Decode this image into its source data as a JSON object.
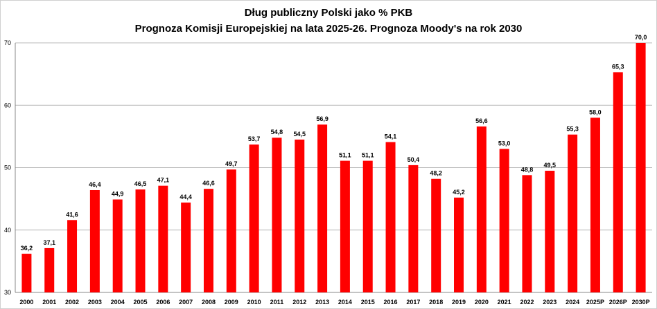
{
  "chart_data": {
    "type": "bar",
    "title": "Dług publiczny Polski jako % PKB",
    "subtitle": "Prognoza Komisji Europejskiej na lata 2025-26. Prognoza Moody's na rok 2030",
    "xlabel": "",
    "ylabel": "",
    "ylim": [
      30,
      70
    ],
    "yticks": [
      "30",
      "40",
      "50",
      "60",
      "70"
    ],
    "grid": true,
    "bar_color": "#ff0000",
    "categories": [
      "2000",
      "2001",
      "2002",
      "2003",
      "2004",
      "2005",
      "2006",
      "2007",
      "2008",
      "2009",
      "2010",
      "2011",
      "2012",
      "2013",
      "2014",
      "2015",
      "2016",
      "2017",
      "2018",
      "2019",
      "2020",
      "2021",
      "2022",
      "2023",
      "2024",
      "2025P",
      "2026P",
      "2030P"
    ],
    "values": [
      36.2,
      37.1,
      41.6,
      46.4,
      44.9,
      46.5,
      47.1,
      44.4,
      46.6,
      49.7,
      53.7,
      54.8,
      54.5,
      56.9,
      51.1,
      51.1,
      54.1,
      50.4,
      48.2,
      45.2,
      56.6,
      53.0,
      48.8,
      49.5,
      55.3,
      58.0,
      65.3,
      70.0
    ],
    "value_labels": [
      "36,2",
      "37,1",
      "41,6",
      "46,4",
      "44,9",
      "46,5",
      "47,1",
      "44,4",
      "46,6",
      "49,7",
      "53,7",
      "54,8",
      "54,5",
      "56,9",
      "51,1",
      "51,1",
      "54,1",
      "50,4",
      "48,2",
      "45,2",
      "56,6",
      "53,0",
      "48,8",
      "49,5",
      "55,3",
      "58,0",
      "65,3",
      "70,0"
    ]
  }
}
